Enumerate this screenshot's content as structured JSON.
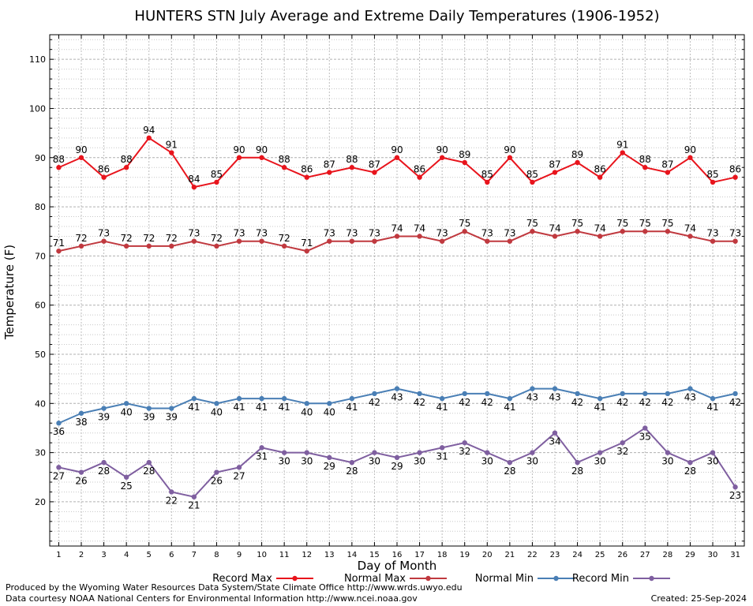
{
  "chart_data": {
    "type": "line",
    "title": "HUNTERS STN July Average and Extreme Daily Temperatures (1906-1952)",
    "xlabel": "Day of Month",
    "ylabel": "Temperature (F)",
    "ylim": [
      11,
      115
    ],
    "xlim": [
      0.6,
      31.4
    ],
    "yticks": [
      20,
      30,
      40,
      50,
      60,
      70,
      80,
      90,
      100,
      110
    ],
    "x": [
      1,
      2,
      3,
      4,
      5,
      6,
      7,
      8,
      9,
      10,
      11,
      12,
      13,
      14,
      15,
      16,
      17,
      18,
      19,
      20,
      21,
      22,
      23,
      24,
      25,
      26,
      27,
      28,
      29,
      30,
      31
    ],
    "grid": true,
    "legend_position": "bottom",
    "series": [
      {
        "name": "Record Max",
        "color": "#e8141c",
        "label_pos": "above",
        "values": [
          88,
          90,
          86,
          88,
          94,
          91,
          84,
          85,
          90,
          90,
          88,
          86,
          87,
          88,
          87,
          90,
          86,
          90,
          89,
          85,
          90,
          85,
          87,
          89,
          86,
          91,
          88,
          87,
          90,
          85,
          86
        ]
      },
      {
        "name": "Normal Max",
        "color": "#c0393f",
        "label_pos": "above",
        "values": [
          71,
          72,
          73,
          72,
          72,
          72,
          73,
          72,
          73,
          73,
          72,
          71,
          73,
          73,
          73,
          74,
          74,
          73,
          75,
          73,
          73,
          75,
          74,
          75,
          74,
          75,
          75,
          75,
          74,
          73,
          73
        ]
      },
      {
        "name": "Normal Min",
        "color": "#4a7fb5",
        "label_pos": "below",
        "values": [
          36,
          38,
          39,
          40,
          39,
          39,
          41,
          40,
          41,
          41,
          41,
          40,
          40,
          41,
          42,
          43,
          42,
          41,
          42,
          42,
          41,
          43,
          43,
          42,
          41,
          42,
          42,
          42,
          43,
          41,
          42
        ]
      },
      {
        "name": "Record Min",
        "color": "#7f5fa0",
        "label_pos": "below",
        "values": [
          27,
          26,
          28,
          25,
          28,
          22,
          21,
          26,
          27,
          31,
          30,
          30,
          29,
          28,
          30,
          29,
          30,
          31,
          32,
          30,
          28,
          30,
          34,
          28,
          30,
          32,
          35,
          30,
          28,
          30,
          23
        ]
      }
    ]
  },
  "footer": {
    "produced_by": "Produced by the Wyoming Water Resources Data System/State Climate Office http://www.wrds.uwyo.edu",
    "courtesy": "Data courtesy NOAA National Centers for Environmental Information http://www.ncei.noaa.gov",
    "created": "Created:  25-Sep-2024"
  }
}
